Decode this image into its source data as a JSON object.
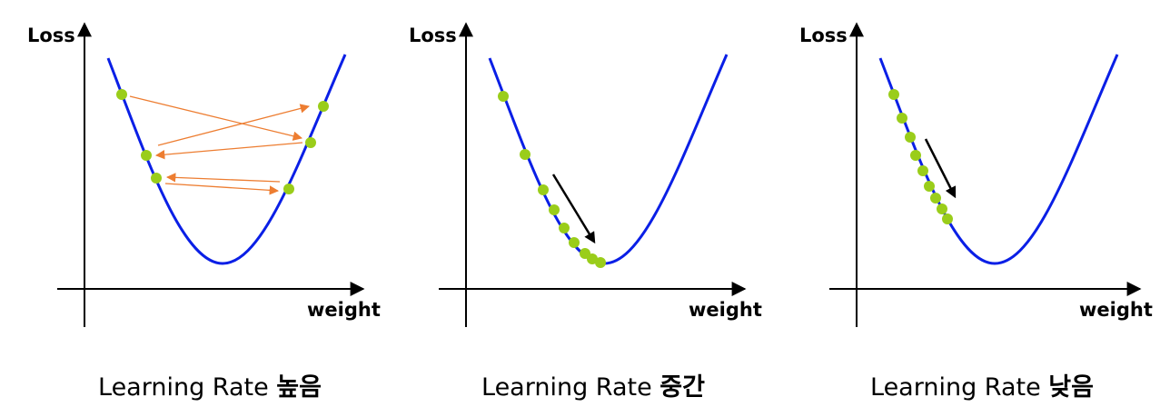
{
  "panels": [
    {
      "id": "high",
      "y_axis_label": "Loss",
      "x_axis_label": "weight",
      "caption_prefix": "Learning Rate ",
      "caption_emphasis": "높음"
    },
    {
      "id": "medium",
      "y_axis_label": "Loss",
      "x_axis_label": "weight",
      "caption_prefix": "Learning Rate ",
      "caption_emphasis": "중간"
    },
    {
      "id": "low",
      "y_axis_label": "Loss",
      "x_axis_label": "weight",
      "caption_prefix": "Learning Rate ",
      "caption_emphasis": "낮음"
    }
  ],
  "colors": {
    "curve": "#0a1fe6",
    "point": "#9acd1a",
    "step_arrow_high": "#ed7d31",
    "direction_arrow": "#000000",
    "axis": "#000000"
  }
}
